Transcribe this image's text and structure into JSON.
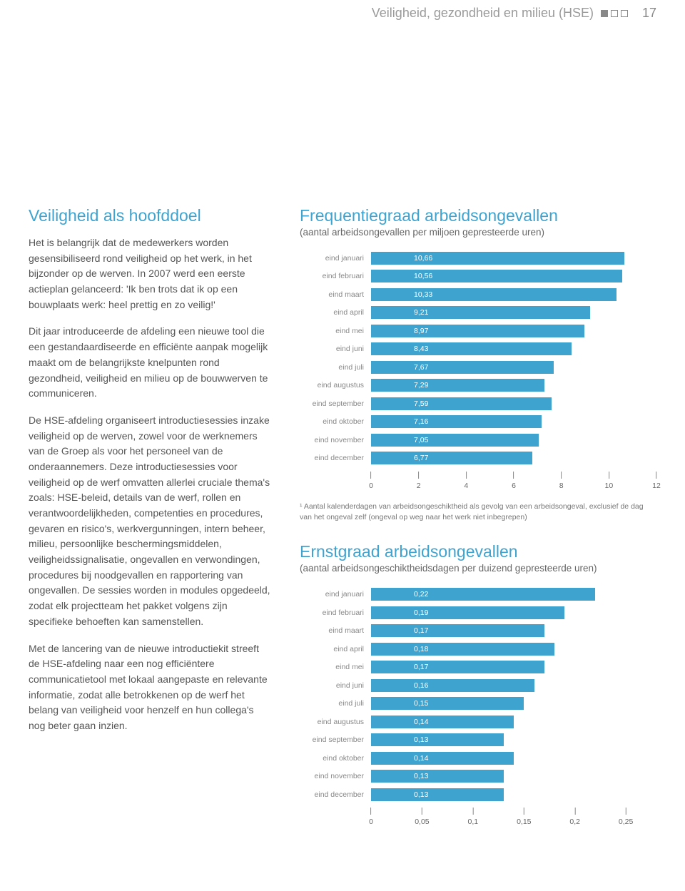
{
  "header": {
    "title": "Veiligheid, gezondheid en milieu (HSE)",
    "page_number": "17"
  },
  "left": {
    "heading": "Veiligheid als hoofddoel",
    "p1": "Het is belangrijk dat de medewerkers worden gesensibiliseerd rond veiligheid op het werk, in het bijzonder op de werven. In 2007 werd een eerste actieplan gelanceerd: 'Ik ben trots dat ik op een bouwplaats werk: heel prettig en zo veilig!'",
    "p2": "Dit jaar introduceerde de afdeling een nieuwe tool die een gestandaardiseerde en efficiënte aanpak mogelijk maakt om de belangrijkste knelpunten rond gezondheid, veiligheid en milieu op de bouwwerven te communiceren.",
    "p3": "De HSE-afdeling organiseert introductiesessies inzake veiligheid op de werven, zowel voor de werknemers van de Groep als voor het personeel van de onderaannemers. Deze introductiesessies voor veiligheid op de werf omvatten allerlei cruciale thema's zoals: HSE-beleid, details van de werf, rollen en verantwoordelijkheden, competenties en procedures, gevaren en risico's, werkvergunningen, intern beheer, milieu, persoonlijke beschermingsmiddelen, veiligheidssignalisatie, ongevallen en verwondingen, procedures bij noodgevallen en rapportering van ongevallen. De sessies worden in modules opgedeeld, zodat elk projectteam het pakket volgens zijn specifieke behoeften kan samenstellen.",
    "p4": "Met de lancering van de nieuwe introductiekit streeft de HSE-afdeling naar een nog efficiëntere communicatietool met lokaal aangepaste en relevante informatie, zodat alle betrokkenen op de werf het belang van veiligheid voor henzelf en hun collega's nog beter gaan inzien."
  },
  "chart1": {
    "title": "Frequentiegraad arbeidsongevallen",
    "subtitle": "(aantal arbeidsongevallen per miljoen gepresteerde uren)",
    "type": "bar",
    "bar_color": "#3fa3d0",
    "text_color": "#ffffff",
    "axis_color": "#888888",
    "label_color": "#888888",
    "label_fontsize": 10.5,
    "xmax": 12,
    "ticks": [
      "0",
      "2",
      "4",
      "6",
      "8",
      "10",
      "12"
    ],
    "tick_positions": [
      0,
      2,
      4,
      6,
      8,
      10,
      12
    ],
    "rows": [
      {
        "label": "eind januari",
        "value": 10.66,
        "display": "10,66"
      },
      {
        "label": "eind februari",
        "value": 10.56,
        "display": "10,56"
      },
      {
        "label": "eind maart",
        "value": 10.33,
        "display": "10,33"
      },
      {
        "label": "eind april",
        "value": 9.21,
        "display": "9,21"
      },
      {
        "label": "eind mei",
        "value": 8.97,
        "display": "8,97"
      },
      {
        "label": "eind juni",
        "value": 8.43,
        "display": "8,43"
      },
      {
        "label": "eind juli",
        "value": 7.67,
        "display": "7,67"
      },
      {
        "label": "eind augustus",
        "value": 7.29,
        "display": "7,29"
      },
      {
        "label": "eind september",
        "value": 7.59,
        "display": "7,59"
      },
      {
        "label": "eind oktober",
        "value": 7.16,
        "display": "7,16"
      },
      {
        "label": "eind november",
        "value": 7.05,
        "display": "7,05"
      },
      {
        "label": "eind december",
        "value": 6.77,
        "display": "6,77"
      }
    ],
    "footnote": "¹ Aantal kalenderdagen van arbeidsongeschiktheid als gevolg van een arbeidsongeval, exclusief de dag van het ongeval zelf (ongeval op weg naar het werk niet inbegrepen)"
  },
  "chart2": {
    "title": "Ernstgraad arbeidsongevallen",
    "subtitle": "(aantal arbeidsongeschiktheidsdagen per duizend gepresteerde uren)",
    "type": "bar",
    "bar_color": "#3fa3d0",
    "text_color": "#ffffff",
    "axis_color": "#888888",
    "label_color": "#888888",
    "label_fontsize": 10.5,
    "xmax": 0.28,
    "ticks": [
      "0",
      "0,05",
      "0,1",
      "0,15",
      "0,2",
      "0,25"
    ],
    "tick_positions": [
      0,
      0.05,
      0.1,
      0.15,
      0.2,
      0.25
    ],
    "rows": [
      {
        "label": "eind januari",
        "value": 0.22,
        "display": "0,22"
      },
      {
        "label": "eind februari",
        "value": 0.19,
        "display": "0,19"
      },
      {
        "label": "eind maart",
        "value": 0.17,
        "display": "0,17"
      },
      {
        "label": "eind april",
        "value": 0.18,
        "display": "0,18"
      },
      {
        "label": "eind mei",
        "value": 0.17,
        "display": "0,17"
      },
      {
        "label": "eind juni",
        "value": 0.16,
        "display": "0,16"
      },
      {
        "label": "eind juli",
        "value": 0.15,
        "display": "0,15"
      },
      {
        "label": "eind augustus",
        "value": 0.14,
        "display": "0,14"
      },
      {
        "label": "eind september",
        "value": 0.13,
        "display": "0,13"
      },
      {
        "label": "eind oktober",
        "value": 0.14,
        "display": "0,14"
      },
      {
        "label": "eind november",
        "value": 0.13,
        "display": "0,13"
      },
      {
        "label": "eind december",
        "value": 0.13,
        "display": "0,13"
      }
    ]
  }
}
